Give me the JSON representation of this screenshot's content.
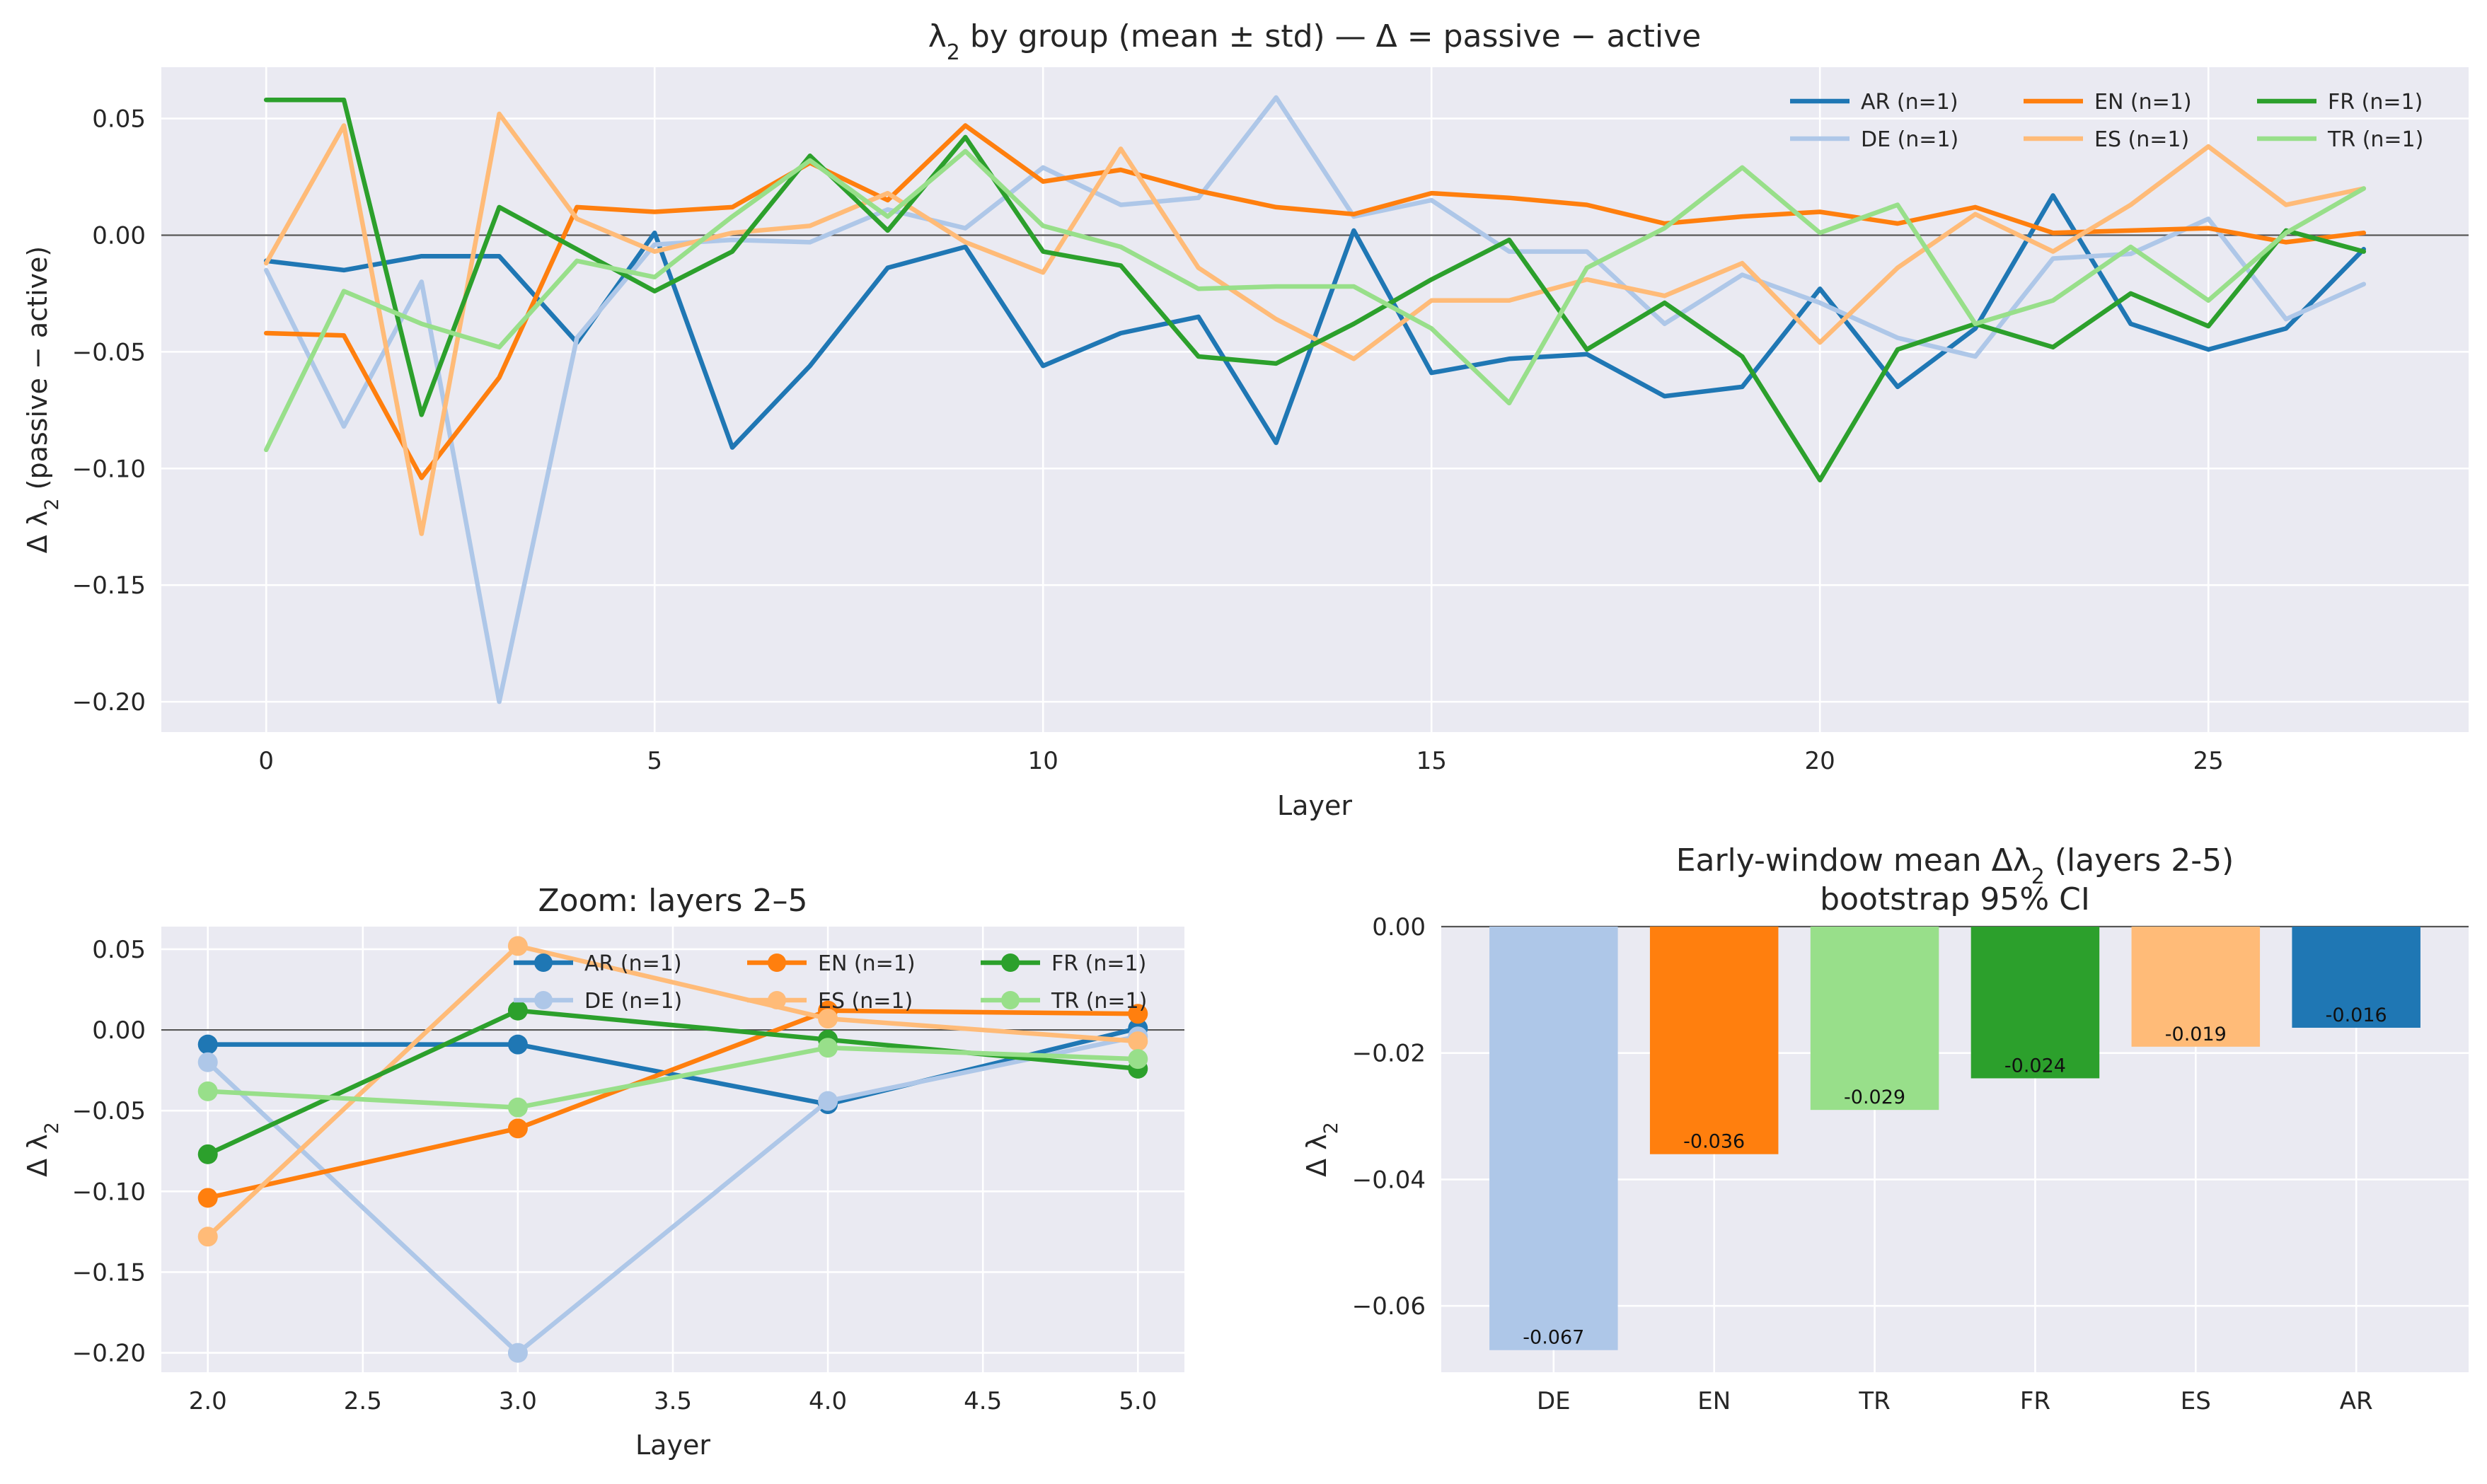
{
  "chart_data": [
    {
      "type": "line",
      "title": "λ2 by group (mean ± std) — Δ = passive − active",
      "title_parts": {
        "pre": "λ",
        "sub": "2",
        "post": " by group (mean ± std) — Δ = passive − active"
      },
      "xlabel": "Layer",
      "ylabel": "Δ λ2  (passive − active)",
      "ylabel_parts": {
        "pre": "Δ λ",
        "sub": "2",
        "post": "  (passive − active)"
      },
      "xlim": [
        -1.35,
        28.35
      ],
      "ylim": [
        -0.213,
        0.072
      ],
      "xticks": [
        0,
        5,
        10,
        15,
        20,
        25
      ],
      "xtick_labels": [
        "0",
        "5",
        "10",
        "15",
        "20",
        "25"
      ],
      "yticks": [
        0.05,
        0.0,
        -0.05,
        -0.1,
        -0.15,
        -0.2
      ],
      "ytick_labels": [
        "0.05",
        "0.00",
        "−0.05",
        "−0.10",
        "−0.15",
        "−0.20"
      ],
      "zero_line": true,
      "legend_position": "top-right",
      "x": [
        0,
        1,
        2,
        3,
        4,
        5,
        6,
        7,
        8,
        9,
        10,
        11,
        12,
        13,
        14,
        15,
        16,
        17,
        18,
        19,
        20,
        21,
        22,
        23,
        24,
        25,
        26,
        27
      ],
      "series": [
        {
          "name": "AR (n=1)",
          "color": "#1f77b4",
          "values": [
            -0.011,
            -0.015,
            -0.009,
            -0.009,
            -0.046,
            0.001,
            -0.091,
            -0.056,
            -0.014,
            -0.005,
            -0.056,
            -0.042,
            -0.035,
            -0.089,
            0.002,
            -0.059,
            -0.053,
            -0.051,
            -0.069,
            -0.065,
            -0.023,
            -0.065,
            -0.04,
            0.017,
            -0.038,
            -0.049,
            -0.04,
            -0.006
          ]
        },
        {
          "name": "DE (n=1)",
          "color": "#aec7e8",
          "values": [
            -0.015,
            -0.082,
            -0.02,
            -0.2,
            -0.044,
            -0.004,
            -0.002,
            -0.003,
            0.011,
            0.003,
            0.029,
            0.013,
            0.016,
            0.059,
            0.008,
            0.015,
            -0.007,
            -0.007,
            -0.038,
            -0.017,
            -0.029,
            -0.044,
            -0.052,
            -0.01,
            -0.008,
            0.007,
            -0.036,
            -0.021
          ]
        },
        {
          "name": "EN (n=1)",
          "color": "#ff7f0e",
          "values": [
            -0.042,
            -0.043,
            -0.104,
            -0.061,
            0.012,
            0.01,
            0.012,
            0.031,
            0.015,
            0.047,
            0.023,
            0.028,
            0.019,
            0.012,
            0.009,
            0.018,
            0.016,
            0.013,
            0.005,
            0.008,
            0.01,
            0.005,
            0.012,
            0.001,
            0.002,
            0.003,
            -0.003,
            0.001
          ]
        },
        {
          "name": "ES (n=1)",
          "color": "#ffbb78",
          "values": [
            -0.012,
            0.047,
            -0.128,
            0.052,
            0.007,
            -0.007,
            0.001,
            0.004,
            0.018,
            -0.003,
            -0.016,
            0.037,
            -0.014,
            -0.036,
            -0.053,
            -0.028,
            -0.028,
            -0.019,
            -0.026,
            -0.012,
            -0.046,
            -0.014,
            0.009,
            -0.007,
            0.013,
            0.038,
            0.013,
            0.02
          ]
        },
        {
          "name": "FR (n=1)",
          "color": "#2ca02c",
          "values": [
            0.058,
            0.058,
            -0.077,
            0.012,
            -0.006,
            -0.024,
            -0.007,
            0.034,
            0.002,
            0.042,
            -0.007,
            -0.013,
            -0.052,
            -0.055,
            -0.038,
            -0.019,
            -0.002,
            -0.049,
            -0.029,
            -0.052,
            -0.105,
            -0.049,
            -0.038,
            -0.048,
            -0.025,
            -0.039,
            0.002,
            -0.007
          ]
        },
        {
          "name": "TR (n=1)",
          "color": "#98df8a",
          "values": [
            -0.092,
            -0.024,
            -0.038,
            -0.048,
            -0.011,
            -0.018,
            0.008,
            0.032,
            0.008,
            0.036,
            0.004,
            -0.005,
            -0.023,
            -0.022,
            -0.022,
            -0.04,
            -0.072,
            -0.014,
            0.003,
            0.029,
            0.001,
            0.013,
            -0.038,
            -0.028,
            -0.005,
            -0.028,
            0.001,
            0.02
          ]
        }
      ]
    },
    {
      "type": "line",
      "title": "Zoom: layers 2–5",
      "xlabel": "Layer",
      "ylabel": "Δ λ2",
      "ylabel_parts": {
        "pre": "Δ λ",
        "sub": "2",
        "post": ""
      },
      "xlim": [
        1.85,
        5.15
      ],
      "ylim": [
        -0.212,
        0.064
      ],
      "xticks": [
        2.0,
        2.5,
        3.0,
        3.5,
        4.0,
        4.5,
        5.0
      ],
      "xtick_labels": [
        "2.0",
        "2.5",
        "3.0",
        "3.5",
        "4.0",
        "4.5",
        "5.0"
      ],
      "yticks": [
        0.05,
        0.0,
        -0.05,
        -0.1,
        -0.15,
        -0.2
      ],
      "ytick_labels": [
        "0.05",
        "0.00",
        "−0.05",
        "−0.10",
        "−0.15",
        "−0.20"
      ],
      "zero_line": true,
      "markers": true,
      "legend_position": "top-right",
      "x": [
        2,
        3,
        4,
        5
      ],
      "series": [
        {
          "name": "AR (n=1)",
          "color": "#1f77b4",
          "values": [
            -0.009,
            -0.009,
            -0.046,
            0.001
          ]
        },
        {
          "name": "DE (n=1)",
          "color": "#aec7e8",
          "values": [
            -0.02,
            -0.2,
            -0.044,
            -0.004
          ]
        },
        {
          "name": "EN (n=1)",
          "color": "#ff7f0e",
          "values": [
            -0.104,
            -0.061,
            0.012,
            0.01
          ]
        },
        {
          "name": "ES (n=1)",
          "color": "#ffbb78",
          "values": [
            -0.128,
            0.052,
            0.007,
            -0.007
          ]
        },
        {
          "name": "FR (n=1)",
          "color": "#2ca02c",
          "values": [
            -0.077,
            0.012,
            -0.006,
            -0.024
          ]
        },
        {
          "name": "TR (n=1)",
          "color": "#98df8a",
          "values": [
            -0.038,
            -0.048,
            -0.011,
            -0.018
          ]
        }
      ]
    },
    {
      "type": "bar",
      "title": "Early-window mean Δλ2  (layers 2-5)",
      "title_parts": {
        "pre": "Early-window mean Δλ",
        "sub": "2",
        "post": "  (layers 2-5)"
      },
      "subtitle": "bootstrap 95% CI",
      "xlabel": "",
      "ylabel": "Δ λ2",
      "ylabel_parts": {
        "pre": "Δ λ",
        "sub": "2",
        "post": ""
      },
      "ylim": [
        -0.0705,
        0.0
      ],
      "yticks": [
        0.0,
        -0.02,
        -0.04,
        -0.06
      ],
      "ytick_labels": [
        "0.00",
        "−0.02",
        "−0.04",
        "−0.06"
      ],
      "categories": [
        "DE",
        "EN",
        "TR",
        "FR",
        "ES",
        "AR"
      ],
      "values": [
        -0.067,
        -0.036,
        -0.029,
        -0.024,
        -0.019,
        -0.016
      ],
      "value_labels": [
        "-0.067",
        "-0.036",
        "-0.029",
        "-0.024",
        "-0.019",
        "-0.016"
      ],
      "colors": [
        "#aec7e8",
        "#ff7f0e",
        "#98df8a",
        "#2ca02c",
        "#ffbb78",
        "#1f77b4"
      ]
    }
  ]
}
